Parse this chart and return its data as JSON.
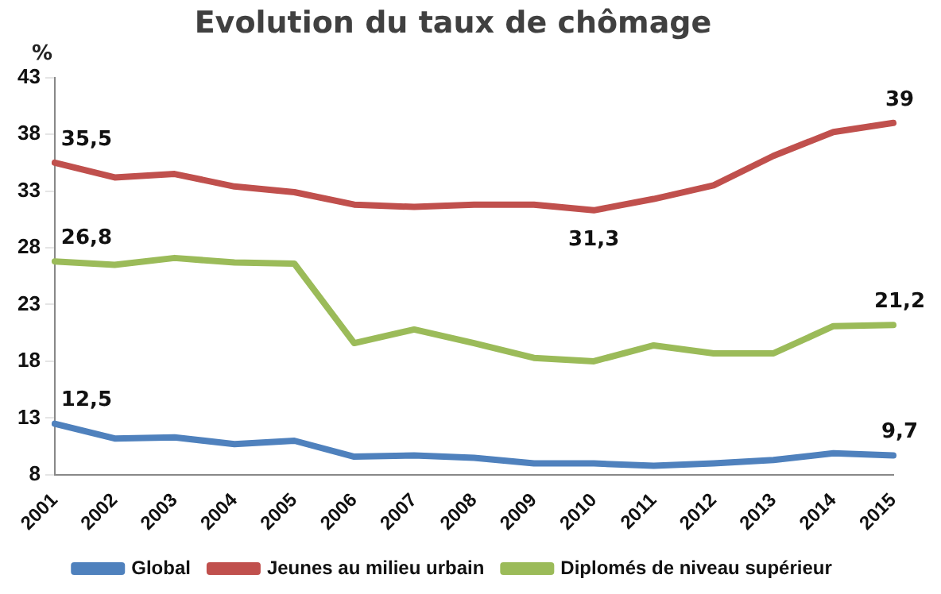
{
  "chart_data": {
    "type": "line",
    "title": "Evolution du taux de chômage",
    "ylabel": "%",
    "categories": [
      "2001",
      "2002",
      "2003",
      "2004",
      "2005",
      "2006",
      "2007",
      "2008",
      "2009",
      "2010",
      "2011",
      "2012",
      "2013",
      "2014",
      "2015"
    ],
    "series": [
      {
        "name": "Global",
        "color": "#4f81bd",
        "values": [
          12.5,
          11.2,
          11.3,
          10.7,
          11.0,
          9.6,
          9.7,
          9.5,
          9.0,
          9.0,
          8.8,
          9.0,
          9.3,
          9.9,
          9.7
        ],
        "value_labels": [
          "12,5",
          null,
          null,
          null,
          null,
          null,
          null,
          null,
          null,
          null,
          null,
          null,
          null,
          null,
          "9,7"
        ]
      },
      {
        "name": "Jeunes au milieu urbain",
        "color": "#c0504d",
        "values": [
          35.5,
          34.2,
          34.5,
          33.4,
          32.9,
          31.8,
          31.6,
          31.8,
          31.8,
          31.3,
          32.3,
          33.5,
          36.1,
          38.2,
          39
        ],
        "value_labels": [
          "35,5",
          null,
          null,
          null,
          null,
          null,
          null,
          null,
          null,
          "31,3",
          null,
          null,
          null,
          null,
          "39"
        ]
      },
      {
        "name": "Diplomés de niveau supérieur",
        "color": "#9bbb59",
        "values": [
          26.8,
          26.5,
          27.1,
          26.7,
          26.6,
          19.6,
          20.8,
          19.6,
          18.3,
          18.0,
          19.4,
          18.7,
          18.7,
          21.1,
          21.2
        ],
        "value_labels": [
          "26,8",
          null,
          null,
          null,
          null,
          null,
          null,
          null,
          null,
          null,
          null,
          null,
          null,
          null,
          "21,2"
        ]
      }
    ],
    "ylim": [
      8,
      43
    ],
    "yticks": [
      8,
      13,
      18,
      23,
      28,
      33,
      38,
      43
    ],
    "grid": false,
    "legend": "bottom",
    "marker": "none",
    "line_style": "solid"
  }
}
